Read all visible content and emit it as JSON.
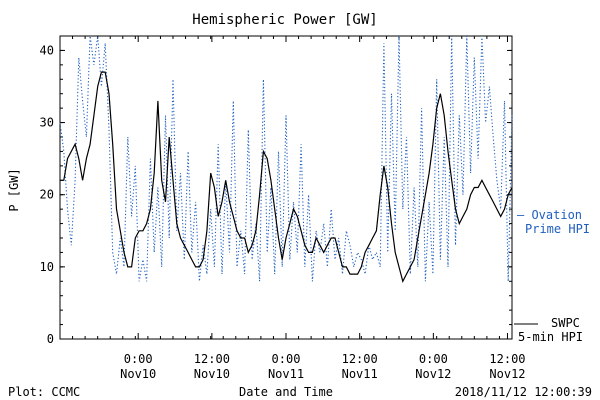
{
  "chart_data": {
    "type": "line",
    "title": "Hemispheric Power [GW]",
    "xlabel": "Date and Time",
    "ylabel": "P [GW]",
    "ylim": [
      0,
      42
    ],
    "yticks": [
      "0",
      "10",
      "20",
      "30",
      "40"
    ],
    "xrange_hours": [
      0,
      60
    ],
    "xticks": [
      {
        "time": "0:00",
        "date": "Nov10"
      },
      {
        "time": "12:00",
        "date": "Nov10"
      },
      {
        "time": "0:00",
        "date": "Nov11"
      },
      {
        "time": "12:00",
        "date": "Nov11"
      },
      {
        "time": "0:00",
        "date": "Nov12"
      },
      {
        "time": "12:00",
        "date": "Nov12"
      }
    ],
    "grid": false,
    "series": [
      {
        "name": "Ovation Prime HPI",
        "color": "#1f5fbf",
        "style": "dotted",
        "x": [
          0,
          0.5,
          1,
          1.5,
          2,
          2.5,
          3,
          3.5,
          4,
          4.5,
          5,
          5.5,
          6,
          6.5,
          7,
          7.5,
          8,
          8.5,
          9,
          9.5,
          10,
          10.5,
          11,
          11.5,
          12,
          12.5,
          13,
          13.5,
          14,
          14.5,
          15,
          15.5,
          16,
          16.5,
          17,
          17.5,
          18,
          18.5,
          19,
          19.5,
          20,
          20.5,
          21,
          21.5,
          22,
          22.5,
          23,
          23.5,
          24,
          24.5,
          25,
          25.5,
          26,
          26.5,
          27,
          27.5,
          28,
          28.5,
          29,
          29.5,
          30,
          30.5,
          31,
          31.5,
          32,
          32.5,
          33,
          33.5,
          34,
          34.5,
          35,
          35.5,
          36,
          36.5,
          37,
          37.5,
          38,
          38.5,
          39,
          39.5,
          40,
          40.5,
          41,
          41.5,
          42,
          42.5,
          43,
          43.5,
          44,
          44.5,
          45,
          45.5,
          46,
          46.5,
          47,
          47.5,
          48,
          48.5,
          49,
          49.5,
          50,
          50.5,
          51,
          51.5,
          52,
          52.5,
          53,
          53.5,
          54,
          54.5,
          55,
          55.5,
          56,
          56.5,
          57,
          57.5,
          58,
          58.5,
          59,
          59.5,
          60
        ],
        "values": [
          30,
          26,
          18,
          13,
          22,
          39,
          33,
          28,
          42,
          38,
          42,
          35,
          41,
          29,
          12,
          9,
          14,
          10,
          28,
          17,
          24,
          8,
          11,
          8,
          25,
          12,
          21,
          10,
          31,
          14,
          36,
          15,
          23,
          11,
          26,
          12,
          19,
          8,
          13,
          9,
          18,
          10,
          27,
          9,
          22,
          12,
          33,
          10,
          15,
          9,
          29,
          11,
          16,
          8,
          36,
          12,
          21,
          9,
          26,
          10,
          31,
          11,
          19,
          12,
          27,
          10,
          20,
          8,
          15,
          12,
          16,
          10,
          18,
          11,
          14,
          9,
          15,
          13,
          10,
          12,
          11,
          9,
          13,
          11,
          12,
          10,
          41,
          12,
          34,
          15,
          42,
          18,
          28,
          9,
          21,
          10,
          32,
          8,
          19,
          9,
          36,
          11,
          28,
          10,
          42,
          13,
          31,
          20,
          42,
          23,
          39,
          25,
          42,
          30,
          35,
          28,
          22,
          18,
          33,
          8,
          31
        ]
      },
      {
        "name": "SWPC 5-min HPI",
        "color": "#000000",
        "style": "solid",
        "x": [
          0,
          0.5,
          1,
          1.5,
          2,
          2.5,
          3,
          3.5,
          4,
          4.5,
          5,
          5.5,
          6,
          6.5,
          7,
          7.5,
          8,
          8.5,
          9,
          9.5,
          10,
          10.5,
          11,
          11.5,
          12,
          12.5,
          13,
          13.5,
          14,
          14.5,
          15,
          15.5,
          16,
          16.5,
          17,
          17.5,
          18,
          18.5,
          19,
          19.5,
          20,
          20.5,
          21,
          21.5,
          22,
          22.5,
          23,
          23.5,
          24,
          24.5,
          25,
          25.5,
          26,
          26.5,
          27,
          27.5,
          28,
          28.5,
          29,
          29.5,
          30,
          30.5,
          31,
          31.5,
          32,
          32.5,
          33,
          33.5,
          34,
          34.5,
          35,
          35.5,
          36,
          36.5,
          37,
          37.5,
          38,
          38.5,
          39,
          39.5,
          40,
          40.5,
          41,
          41.5,
          42,
          42.5,
          43,
          43.5,
          44,
          44.5,
          45,
          45.5,
          46,
          46.5,
          47,
          47.5,
          48,
          48.5,
          49,
          49.5,
          50,
          50.5,
          51,
          51.5,
          52,
          52.5,
          53,
          53.5,
          54,
          54.5,
          55,
          55.5,
          56,
          56.5,
          57,
          57.5,
          58,
          58.5,
          59,
          59.5,
          60
        ],
        "values": [
          22,
          22,
          25,
          26,
          27,
          25,
          22,
          25,
          27,
          31,
          35,
          37,
          37,
          34,
          27,
          18,
          15,
          12,
          10,
          10,
          14,
          15,
          15,
          16,
          18,
          23,
          33,
          22,
          19,
          28,
          22,
          16,
          14,
          13,
          12,
          11,
          10,
          10,
          11,
          15,
          23,
          21,
          17,
          19,
          22,
          19,
          17,
          15,
          14,
          14,
          12,
          13,
          15,
          20,
          26,
          25,
          22,
          18,
          14,
          11,
          14,
          16,
          18,
          17,
          15,
          13,
          12,
          12,
          14,
          13,
          12,
          13,
          14,
          14,
          12,
          10,
          10,
          9,
          9,
          9,
          10,
          12,
          13,
          14,
          15,
          20,
          24,
          21,
          16,
          12,
          10,
          8,
          9,
          10,
          11,
          14,
          17,
          20,
          23,
          27,
          32,
          34,
          31,
          26,
          22,
          18,
          16,
          17,
          18,
          20,
          21,
          21,
          22,
          21,
          20,
          19,
          18,
          17,
          18,
          20,
          21
        ]
      }
    ],
    "legend": {
      "ovation_line1": "— Ovation",
      "ovation_line2": "Prime HPI",
      "swpc_line1": "SWPC",
      "swpc_line2": "5-min HPI"
    }
  },
  "footer": {
    "plot_label": "Plot: CCMC",
    "xlabel": "Date and Time",
    "timestamp": "2018/11/12 12:00:39"
  }
}
